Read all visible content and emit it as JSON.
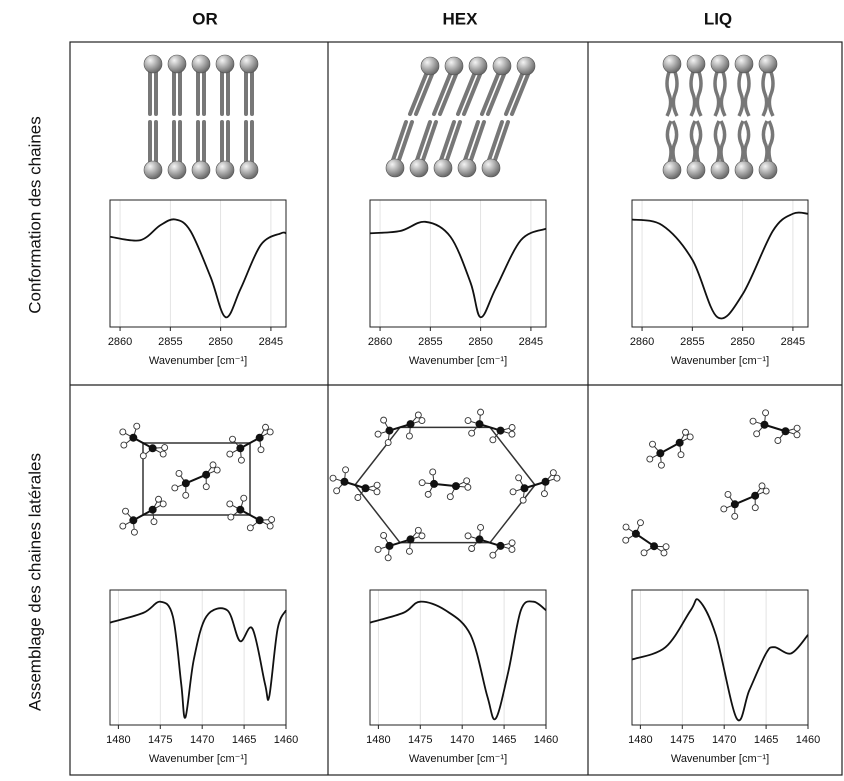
{
  "columns": [
    "OR",
    "HEX",
    "LIQ"
  ],
  "rows": [
    "Conformation des chaines",
    "Assemblage des chaines latérales"
  ],
  "spectra": [
    [
      {
        "xlabel": "Wavenumber [cm⁻¹]",
        "xlim": [
          2861,
          2843.5
        ],
        "xticks": [
          2860,
          2855,
          2850,
          2845
        ],
        "ylim": [
          0,
          1
        ],
        "x": [
          2861,
          2858,
          2856,
          2854.5,
          2853,
          2851,
          2849.5,
          2848,
          2846,
          2844,
          2843.5
        ],
        "y": [
          0.75,
          0.72,
          0.85,
          0.9,
          0.8,
          0.4,
          0.05,
          0.3,
          0.68,
          0.78,
          0.78
        ]
      },
      {
        "xlabel": "Wavenumber [cm⁻¹]",
        "xlim": [
          2861,
          2843.5
        ],
        "xticks": [
          2860,
          2855,
          2850,
          2845
        ],
        "ylim": [
          0,
          1
        ],
        "x": [
          2861,
          2858,
          2855.5,
          2853,
          2851,
          2850,
          2848.5,
          2846,
          2843.5
        ],
        "y": [
          0.78,
          0.8,
          0.88,
          0.75,
          0.35,
          0.05,
          0.3,
          0.72,
          0.82
        ]
      },
      {
        "xlabel": "Wavenumber [cm⁻¹]",
        "xlim": [
          2861,
          2843.5
        ],
        "xticks": [
          2860,
          2855,
          2850,
          2845
        ],
        "ylim": [
          0,
          1
        ],
        "x": [
          2861,
          2858,
          2855,
          2852.5,
          2850,
          2847,
          2845,
          2843.5
        ],
        "y": [
          0.9,
          0.85,
          0.55,
          0.05,
          0.25,
          0.8,
          0.95,
          0.95
        ]
      }
    ],
    [
      {
        "xlabel": "Wavenumber [cm⁻¹]",
        "xlim": [
          1481,
          1460
        ],
        "xticks": [
          1480,
          1475,
          1470,
          1465,
          1460
        ],
        "ylim": [
          0,
          1
        ],
        "x": [
          1481,
          1477,
          1475,
          1473.5,
          1472.5,
          1472,
          1471,
          1469.5,
          1467,
          1465.5,
          1464,
          1462.5,
          1462,
          1461,
          1460
        ],
        "y": [
          0.8,
          0.88,
          0.97,
          0.85,
          0.3,
          0.03,
          0.5,
          0.85,
          0.9,
          0.65,
          0.75,
          0.3,
          0.2,
          0.75,
          0.9
        ]
      },
      {
        "xlabel": "Wavenumber [cm⁻¹]",
        "xlim": [
          1481,
          1460
        ],
        "xticks": [
          1480,
          1475,
          1470,
          1465,
          1460
        ],
        "ylim": [
          0,
          1
        ],
        "x": [
          1481,
          1477,
          1475,
          1472,
          1469,
          1467,
          1466,
          1464.5,
          1463,
          1461.5,
          1460
        ],
        "y": [
          0.8,
          0.88,
          0.97,
          0.9,
          0.7,
          0.2,
          0.02,
          0.4,
          0.9,
          0.97,
          0.9
        ]
      },
      {
        "xlabel": "Wavenumber [cm⁻¹]",
        "xlim": [
          1481,
          1460
        ],
        "xticks": [
          1480,
          1475,
          1470,
          1465,
          1460
        ],
        "ylim": [
          0,
          1
        ],
        "x": [
          1481,
          1477,
          1474,
          1473,
          1471,
          1468.5,
          1467,
          1465,
          1464,
          1462,
          1460
        ],
        "y": [
          0.5,
          0.6,
          0.9,
          0.98,
          0.7,
          0.02,
          0.25,
          0.55,
          0.6,
          0.55,
          0.7
        ]
      }
    ]
  ]
}
